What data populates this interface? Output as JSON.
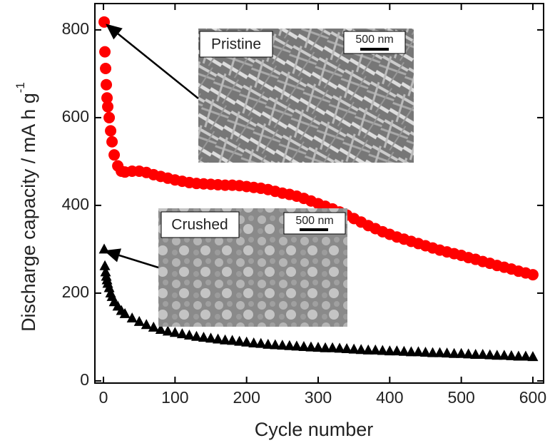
{
  "chart_data": {
    "type": "scatter",
    "x_label": "Cycle number",
    "y_label": "Discharge capacity / mA h g",
    "y_label_superscript": "-1",
    "annotations": [
      "Pristine",
      "500 nm",
      "Crushed",
      "500 nm"
    ],
    "x": [
      1,
      2,
      3,
      4,
      5,
      6,
      8,
      10,
      12,
      15,
      20,
      25,
      30,
      40,
      50,
      60,
      70,
      80,
      90,
      100,
      110,
      120,
      130,
      140,
      150,
      160,
      170,
      180,
      190,
      200,
      210,
      220,
      230,
      240,
      250,
      260,
      270,
      280,
      290,
      300,
      310,
      320,
      330,
      340,
      350,
      360,
      370,
      380,
      390,
      400,
      410,
      420,
      430,
      440,
      450,
      460,
      470,
      480,
      490,
      500,
      510,
      520,
      530,
      540,
      550,
      560,
      570,
      580,
      590,
      600
    ],
    "series": [
      {
        "name": "Pristine",
        "color": "#ff0000",
        "marker": "circle",
        "values": [
          818,
          750,
          712,
          675,
          645,
          625,
          600,
          570,
          545,
          515,
          490,
          478,
          476,
          478,
          478,
          475,
          470,
          466,
          462,
          458,
          455,
          452,
          450,
          449,
          448,
          447,
          446,
          446,
          445,
          443,
          441,
          439,
          436,
          432,
          428,
          425,
          421,
          416,
          410,
          404,
          398,
          392,
          385,
          378,
          370,
          362,
          354,
          347,
          340,
          334,
          328,
          323,
          318,
          313,
          308,
          303,
          298,
          294,
          290,
          286,
          281,
          277,
          272,
          268,
          263,
          259,
          255,
          250,
          246,
          242
        ]
      },
      {
        "name": "Crushed",
        "color": "#000000",
        "marker": "triangle",
        "values": [
          300,
          262,
          248,
          238,
          230,
          222,
          212,
          200,
          192,
          180,
          170,
          160,
          153,
          143,
          135,
          128,
          122,
          117,
          113,
          110,
          107,
          104,
          101,
          99,
          97,
          95,
          93,
          92,
          90,
          88,
          86,
          85,
          83,
          82,
          81,
          80,
          79,
          78,
          77,
          76,
          75,
          75,
          74,
          73,
          72,
          71,
          70,
          70,
          69,
          68,
          68,
          67,
          66,
          66,
          65,
          64,
          64,
          63,
          62,
          62,
          61,
          60,
          60,
          59,
          58,
          58,
          57,
          56,
          56,
          55
        ]
      }
    ],
    "xlim": [
      -12,
      615
    ],
    "ylim": [
      -5,
      860
    ],
    "xticks": [
      0,
      100,
      200,
      300,
      400,
      500,
      600
    ],
    "yticks": [
      0,
      200,
      400,
      600,
      800
    ]
  }
}
